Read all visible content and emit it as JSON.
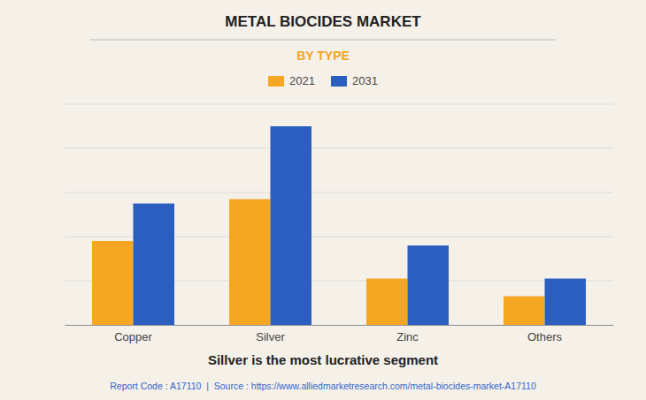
{
  "chart_data": {
    "type": "bar",
    "title": "METAL BIOCIDES MARKET",
    "subtitle": "BY TYPE",
    "categories": [
      "Copper",
      "Silver",
      "Zinc",
      "Others"
    ],
    "series": [
      {
        "name": "2021",
        "color": "#F5A623",
        "values": [
          38,
          57,
          21,
          13
        ]
      },
      {
        "name": "2031",
        "color": "#2B5EBF",
        "values": [
          55,
          90,
          36,
          21
        ]
      }
    ],
    "ylim": [
      0,
      100
    ],
    "yticks": [
      0,
      20,
      40,
      60,
      80,
      100
    ],
    "grid": true,
    "tick_labels": "x",
    "legend": "top",
    "caption": "Sillver is the most lucrative segment",
    "footer": "Report Code : A17110  |  Source : https://www.alliedmarketresearch.com/metal-biocides-market-A17110"
  }
}
